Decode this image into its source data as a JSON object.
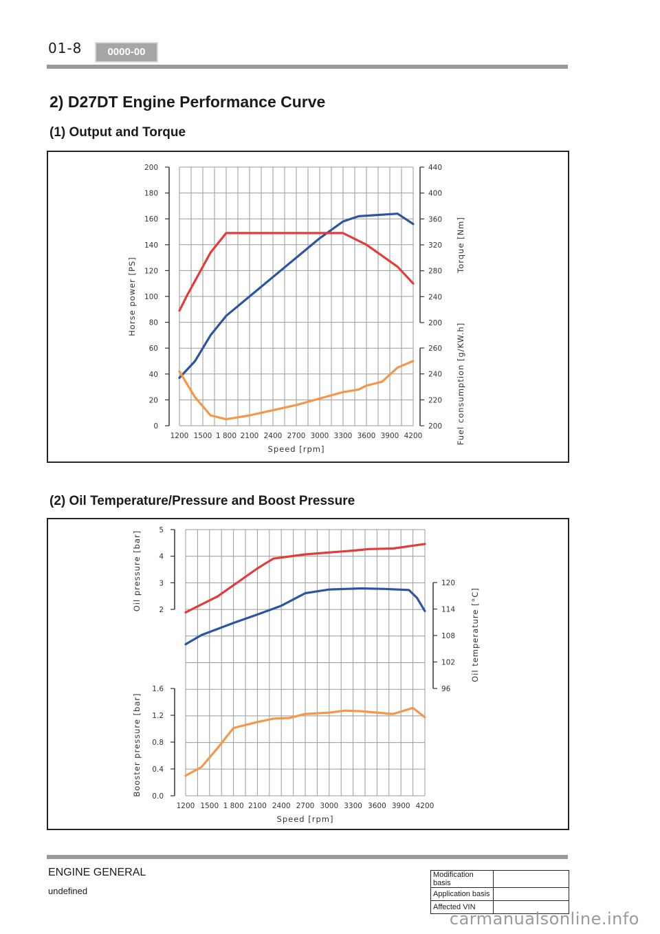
{
  "header": {
    "page_number": "01-8",
    "code": "0000-00"
  },
  "section_title": "2) D27DT Engine Performance Curve",
  "chart1_heading": "(1) Output and Torque",
  "chart2_heading": "(2) Oil Temperature/Pressure and Boost Pressure",
  "chart_data": [
    {
      "type": "line",
      "x_tick_labels": [
        "1200",
        "1500",
        "1 800",
        "2100",
        "2400",
        "2700",
        "3000",
        "3300",
        "3600",
        "3900",
        "4200"
      ],
      "xlabel": "Speed [rpm]",
      "ylabel_left": "Horse power [PS]",
      "yticks_left": [
        "0",
        "20",
        "40",
        "60",
        "80",
        "100",
        "120",
        "140",
        "160",
        "180",
        "200"
      ],
      "ylim_left": [
        0,
        200
      ],
      "ylabel_right_top": "Torque [Nm]",
      "yticks_right_top": [
        "200",
        "240",
        "280",
        "320",
        "360",
        "400",
        "440"
      ],
      "ylim_right_top": [
        200,
        440
      ],
      "ylabel_right_bottom": "Fuel consumption [g/KW.h]",
      "yticks_right_bottom": [
        "200",
        "220",
        "240",
        "260"
      ],
      "ylim_right_bottom": [
        200,
        260
      ],
      "grid": true,
      "series": [
        {
          "color": "#2b55a3",
          "axis": "left",
          "points": [
            [
              1200,
              37
            ],
            [
              1400,
              50
            ],
            [
              1600,
              70
            ],
            [
              1800,
              85
            ],
            [
              2100,
              100
            ],
            [
              2400,
              115
            ],
            [
              2700,
              130
            ],
            [
              3000,
              145
            ],
            [
              3300,
              158
            ],
            [
              3500,
              162
            ],
            [
              4000,
              164
            ],
            [
              4200,
              156
            ]
          ]
        },
        {
          "color": "#e53a3a",
          "axis": "left",
          "points": [
            [
              1200,
              89
            ],
            [
              1300,
              101
            ],
            [
              1600,
              134
            ],
            [
              1800,
              149
            ],
            [
              3300,
              149
            ],
            [
              3600,
              140
            ],
            [
              4000,
              123
            ],
            [
              4200,
              110
            ]
          ]
        },
        {
          "color": "#f5964a",
          "axis": "left",
          "points": [
            [
              1200,
              42
            ],
            [
              1400,
              22
            ],
            [
              1600,
              8
            ],
            [
              1800,
              5
            ],
            [
              2100,
              8
            ],
            [
              2400,
              12
            ],
            [
              2700,
              16
            ],
            [
              3000,
              21
            ],
            [
              3300,
              26
            ],
            [
              3500,
              28
            ],
            [
              3600,
              31
            ],
            [
              3800,
              34
            ],
            [
              4000,
              45
            ],
            [
              4200,
              50
            ]
          ]
        }
      ]
    },
    {
      "type": "line",
      "x_tick_labels": [
        "1200",
        "1500",
        "1 800",
        "2100",
        "2400",
        "2700",
        "3000",
        "3300",
        "3600",
        "3900",
        "4200"
      ],
      "xlabel": "Speed [rpm]",
      "ylabel_left_top": "Oil pressure [bar]",
      "yticks_left_top": [
        "2",
        "3",
        "4",
        "5"
      ],
      "ylim_left_top": [
        2,
        5
      ],
      "ylabel_left_bottom": "Booster pressure [bar]",
      "yticks_left_bottom": [
        "0.0",
        "0.4",
        "0.8",
        "1.2",
        "1.6"
      ],
      "ylim_left_bottom": [
        0.0,
        1.6
      ],
      "ylabel_right": "Oil temperature [°C]",
      "yticks_right": [
        "96",
        "102",
        "108",
        "114",
        "120"
      ],
      "ylim_right": [
        96,
        120
      ],
      "grid": true,
      "series": [
        {
          "color": "#e53a3a",
          "axis": "oil_pressure",
          "points": [
            [
              1200,
              1.9
            ],
            [
              1600,
              2.5
            ],
            [
              2100,
              3.55
            ],
            [
              2300,
              3.92
            ],
            [
              2700,
              4.08
            ],
            [
              3300,
              4.22
            ],
            [
              3500,
              4.28
            ],
            [
              3800,
              4.3
            ],
            [
              4200,
              4.47
            ]
          ]
        },
        {
          "color": "#2b55a3",
          "axis": "oil_pressure",
          "points": [
            [
              1200,
              0.7
            ],
            [
              1400,
              1.05
            ],
            [
              1800,
              1.5
            ],
            [
              2100,
              1.82
            ],
            [
              2400,
              2.15
            ],
            [
              2700,
              2.62
            ],
            [
              3000,
              2.76
            ],
            [
              3400,
              2.8
            ],
            [
              3700,
              2.78
            ],
            [
              4000,
              2.74
            ],
            [
              4100,
              2.45
            ],
            [
              4200,
              1.95
            ]
          ]
        },
        {
          "color": "#f5964a",
          "axis": "booster_pressure",
          "points": [
            [
              1200,
              0.3
            ],
            [
              1400,
              0.43
            ],
            [
              1600,
              0.71
            ],
            [
              1800,
              1.01
            ],
            [
              2100,
              1.1
            ],
            [
              2300,
              1.15
            ],
            [
              2500,
              1.16
            ],
            [
              2700,
              1.22
            ],
            [
              3000,
              1.24
            ],
            [
              3200,
              1.27
            ],
            [
              3400,
              1.26
            ],
            [
              3600,
              1.24
            ],
            [
              3800,
              1.22
            ],
            [
              4050,
              1.31
            ],
            [
              4200,
              1.17
            ]
          ]
        }
      ]
    }
  ],
  "footer": {
    "section": "ENGINE GENERAL",
    "subtitle": "undefined",
    "table_rows": [
      "Modification basis",
      "Application basis",
      "Affected VIN"
    ]
  },
  "watermark": "carmanualsonline.info"
}
